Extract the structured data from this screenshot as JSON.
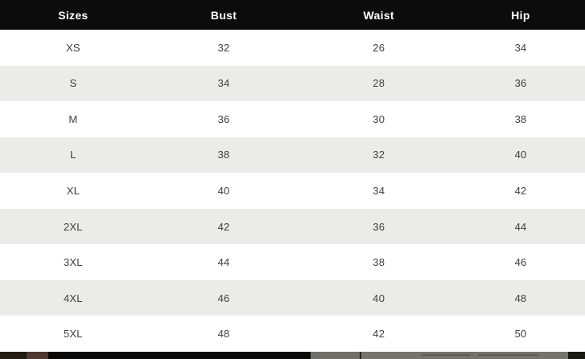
{
  "size_chart": {
    "columns": [
      "Sizes",
      "Bust",
      "Waist",
      "Hip"
    ],
    "rows": [
      [
        "XS",
        "32",
        "26",
        "34"
      ],
      [
        "S",
        "34",
        "28",
        "36"
      ],
      [
        "M",
        "36",
        "30",
        "38"
      ],
      [
        "L",
        "38",
        "32",
        "40"
      ],
      [
        "XL",
        "40",
        "34",
        "42"
      ],
      [
        "2XL",
        "42",
        "36",
        "44"
      ],
      [
        "3XL",
        "44",
        "38",
        "46"
      ],
      [
        "4XL",
        "46",
        "40",
        "48"
      ],
      [
        "5XL",
        "48",
        "42",
        "50"
      ]
    ]
  },
  "colors": {
    "header_bg": "#0c0c0c",
    "header_text": "#ffffff",
    "row_bg": "#ffffff",
    "row_alt_bg": "#ebece9",
    "row_text": "#3f3f3f"
  }
}
